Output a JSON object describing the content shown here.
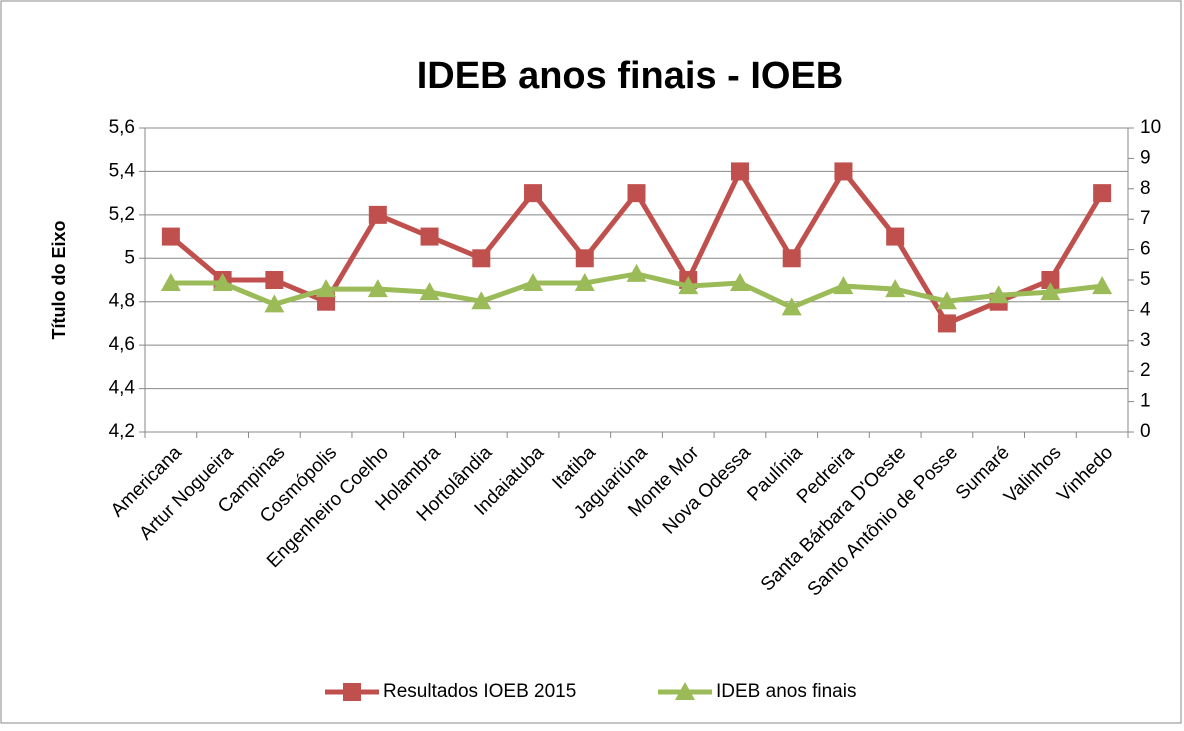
{
  "chart_data": {
    "type": "line",
    "title": "IDEB anos finais - IOEB",
    "ylabel": "Título do Eixo",
    "categories": [
      "Americana",
      "Artur Nogueira",
      "Campinas",
      "Cosmópolis",
      "Engenheiro Coelho",
      "Holambra",
      "Hortolândia",
      "Indaiatuba",
      "Itatiba",
      "Jaguariúna",
      "Monte Mor",
      "Nova Odessa",
      "Paulínia",
      "Pedreira",
      "Santa Bárbara D'Oeste",
      "Santo Antônio de Posse",
      "Sumaré",
      "Valinhos",
      "Vinhedo"
    ],
    "series": [
      {
        "name": "Resultados IOEB 2015",
        "color": "#c0504d",
        "marker": "square",
        "values": [
          5.1,
          4.9,
          4.9,
          4.8,
          5.2,
          5.1,
          5.0,
          5.3,
          5.0,
          5.3,
          4.9,
          5.4,
          5.0,
          5.4,
          5.1,
          4.7,
          4.8,
          4.9,
          5.3
        ]
      },
      {
        "name": "IDEB anos finais",
        "color": "#9bbb59",
        "marker": "triangle",
        "axis": "y2",
        "values": [
          4.9,
          4.9,
          4.2,
          4.7,
          4.7,
          4.6,
          4.3,
          4.9,
          4.9,
          5.2,
          4.8,
          4.9,
          4.1,
          4.8,
          4.7,
          4.3,
          4.5,
          4.6,
          4.8
        ]
      }
    ],
    "ylim": [
      4.2,
      5.6
    ],
    "yticks": [
      {
        "value": 4.2,
        "label": "4,2"
      },
      {
        "value": 4.4,
        "label": "4,4"
      },
      {
        "value": 4.6,
        "label": "4,6"
      },
      {
        "value": 4.8,
        "label": "4,8"
      },
      5,
      {
        "value": 5.2,
        "label": "5,2"
      },
      {
        "value": 5.4,
        "label": "5,4"
      },
      {
        "value": 5.6,
        "label": "5,6"
      }
    ],
    "y2lim": [
      0,
      10
    ],
    "y2ticks": [
      0,
      1,
      2,
      3,
      4,
      5,
      6,
      7,
      8,
      9,
      10
    ],
    "grid": true,
    "legend": "bottom"
  }
}
